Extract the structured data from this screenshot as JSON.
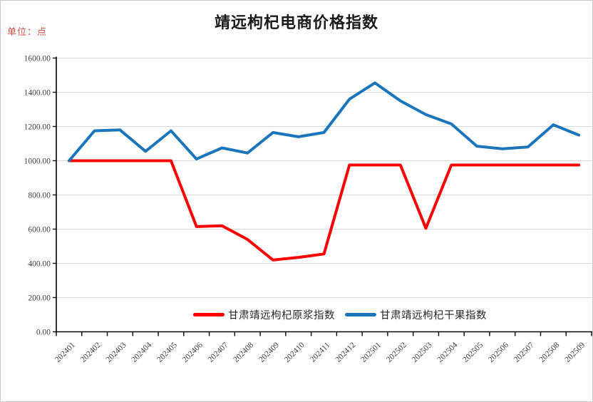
{
  "header": {
    "title": "靖远枸杞电商价格指数",
    "unit_label": "单位：点"
  },
  "colors": {
    "series_raw_puree": "#fe0000",
    "series_dried_fruit": "#1b75bb",
    "gridline": "#d9d9d9",
    "axis": "#000000",
    "tick_text": "#3f3f3f",
    "title_text": "#1a1a1a",
    "unit_text": "#d05045"
  },
  "chart_data": {
    "type": "line",
    "title": "靖远枸杞电商价格指数",
    "unit": "单位：点",
    "categories": [
      "202401",
      "202402",
      "202403",
      "202404",
      "202405",
      "202406",
      "202407",
      "202408",
      "202409",
      "202410",
      "202411",
      "202412",
      "202501",
      "202502",
      "202503",
      "202504",
      "202505",
      "202506",
      "202507",
      "202508",
      "202509"
    ],
    "series": [
      {
        "name": "甘肃靖远枸杞原浆指数",
        "color": "#fe0000",
        "values": [
          1000,
          1000,
          1000,
          1000,
          1000,
          615,
          620,
          540,
          420,
          435,
          455,
          975,
          975,
          975,
          605,
          975,
          975,
          975,
          975,
          975,
          975
        ]
      },
      {
        "name": "甘肃靖远枸杞干果指数",
        "color": "#1b75bb",
        "values": [
          1000,
          1175,
          1180,
          1055,
          1175,
          1010,
          1075,
          1045,
          1165,
          1140,
          1165,
          1360,
          1455,
          1350,
          1270,
          1215,
          1085,
          1070,
          1080,
          1210,
          1150
        ]
      }
    ],
    "ylim": [
      0,
      1600
    ],
    "ytick_step": 200,
    "y_ticks": [
      "0.00",
      "200.00",
      "400.00",
      "600.00",
      "800.00",
      "1000.00",
      "1200.00",
      "1400.00",
      "1600.00"
    ],
    "grid": true,
    "x_label_rotation_deg": -45,
    "legend_position": "bottom-center-inside"
  }
}
